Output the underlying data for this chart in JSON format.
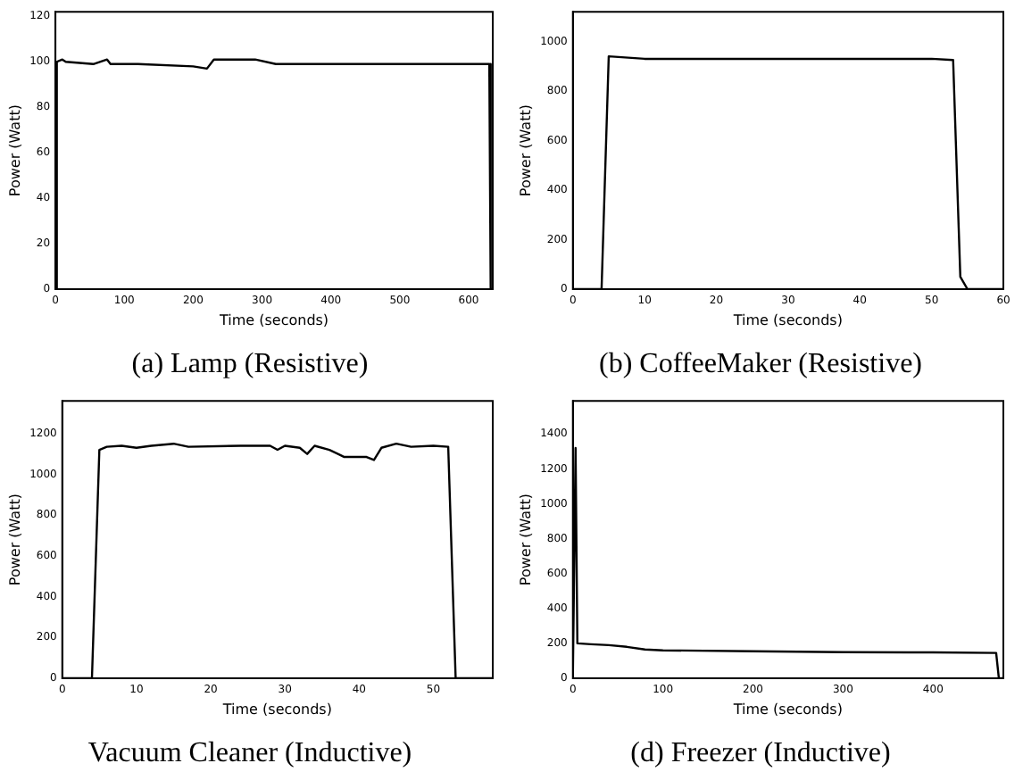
{
  "chart_data": [
    {
      "type": "line",
      "title": "(a) Lamp (Resistive)",
      "xlabel": "Time (seconds)",
      "ylabel": "Power (Watt)",
      "grid": false,
      "legend": false,
      "marker": "none",
      "series": [
        {
          "color": "#000000",
          "x": [
            0,
            2,
            10,
            15,
            55,
            75,
            80,
            120,
            200,
            220,
            230,
            290,
            320,
            420,
            500,
            560,
            600,
            630,
            632,
            635
          ],
          "values": [
            0,
            100,
            101,
            100,
            99,
            101,
            99,
            99,
            98,
            97,
            101,
            101,
            99,
            99,
            99,
            99,
            99,
            99,
            0,
            0
          ]
        }
      ],
      "xlim": [
        0,
        635
      ],
      "xticks": [
        0,
        100,
        200,
        300,
        400,
        500,
        600
      ],
      "ylim": [
        0,
        122
      ],
      "yticks": [
        0,
        20,
        40,
        60,
        80,
        100,
        120
      ]
    },
    {
      "type": "line",
      "title": "(b) CoffeeMaker (Resistive)",
      "xlabel": "Time (seconds)",
      "ylabel": "Power (Watt)",
      "grid": false,
      "legend": false,
      "marker": "none",
      "series": [
        {
          "color": "#000000",
          "x": [
            0,
            4,
            5,
            10,
            20,
            30,
            40,
            50,
            53,
            54,
            55,
            60
          ],
          "values": [
            0,
            0,
            940,
            930,
            930,
            930,
            930,
            930,
            925,
            50,
            0,
            0
          ]
        }
      ],
      "xlim": [
        0,
        60
      ],
      "xticks": [
        0,
        10,
        20,
        30,
        40,
        50,
        60
      ],
      "ylim": [
        0,
        1120
      ],
      "yticks": [
        0,
        200,
        400,
        600,
        800,
        1000
      ]
    },
    {
      "type": "line",
      "title": "Vacuum Cleaner (Inductive)",
      "xlabel": "Time (seconds)",
      "ylabel": "Power (Watt)",
      "grid": false,
      "legend": false,
      "marker": "none",
      "series": [
        {
          "color": "#000000",
          "x": [
            0,
            4,
            5,
            6,
            8,
            10,
            12,
            15,
            17,
            24,
            28,
            29,
            30,
            32,
            33,
            34,
            36,
            38,
            41,
            42,
            43,
            45,
            47,
            50,
            52,
            53,
            58
          ],
          "values": [
            0,
            0,
            1120,
            1135,
            1140,
            1130,
            1140,
            1150,
            1135,
            1140,
            1140,
            1120,
            1140,
            1130,
            1100,
            1140,
            1120,
            1085,
            1085,
            1070,
            1130,
            1150,
            1135,
            1140,
            1135,
            0,
            0
          ]
        }
      ],
      "xlim": [
        0,
        58
      ],
      "xticks": [
        0,
        10,
        20,
        30,
        40,
        50
      ],
      "ylim": [
        0,
        1360
      ],
      "yticks": [
        0,
        200,
        400,
        600,
        800,
        1000,
        1200
      ]
    },
    {
      "type": "line",
      "title": "(d) Freezer (Inductive)",
      "xlabel": "Time (seconds)",
      "ylabel": "Power (Watt)",
      "grid": false,
      "legend": false,
      "marker": "none",
      "series": [
        {
          "color": "#000000",
          "x": [
            0,
            3,
            5,
            20,
            40,
            60,
            80,
            100,
            200,
            300,
            400,
            470,
            473,
            478
          ],
          "values": [
            0,
            1320,
            200,
            195,
            190,
            180,
            165,
            160,
            155,
            150,
            148,
            145,
            0,
            0
          ]
        }
      ],
      "xlim": [
        0,
        478
      ],
      "xticks": [
        0,
        100,
        200,
        300,
        400
      ],
      "ylim": [
        0,
        1590
      ],
      "yticks": [
        0,
        200,
        400,
        600,
        800,
        1000,
        1200,
        1400
      ]
    }
  ]
}
